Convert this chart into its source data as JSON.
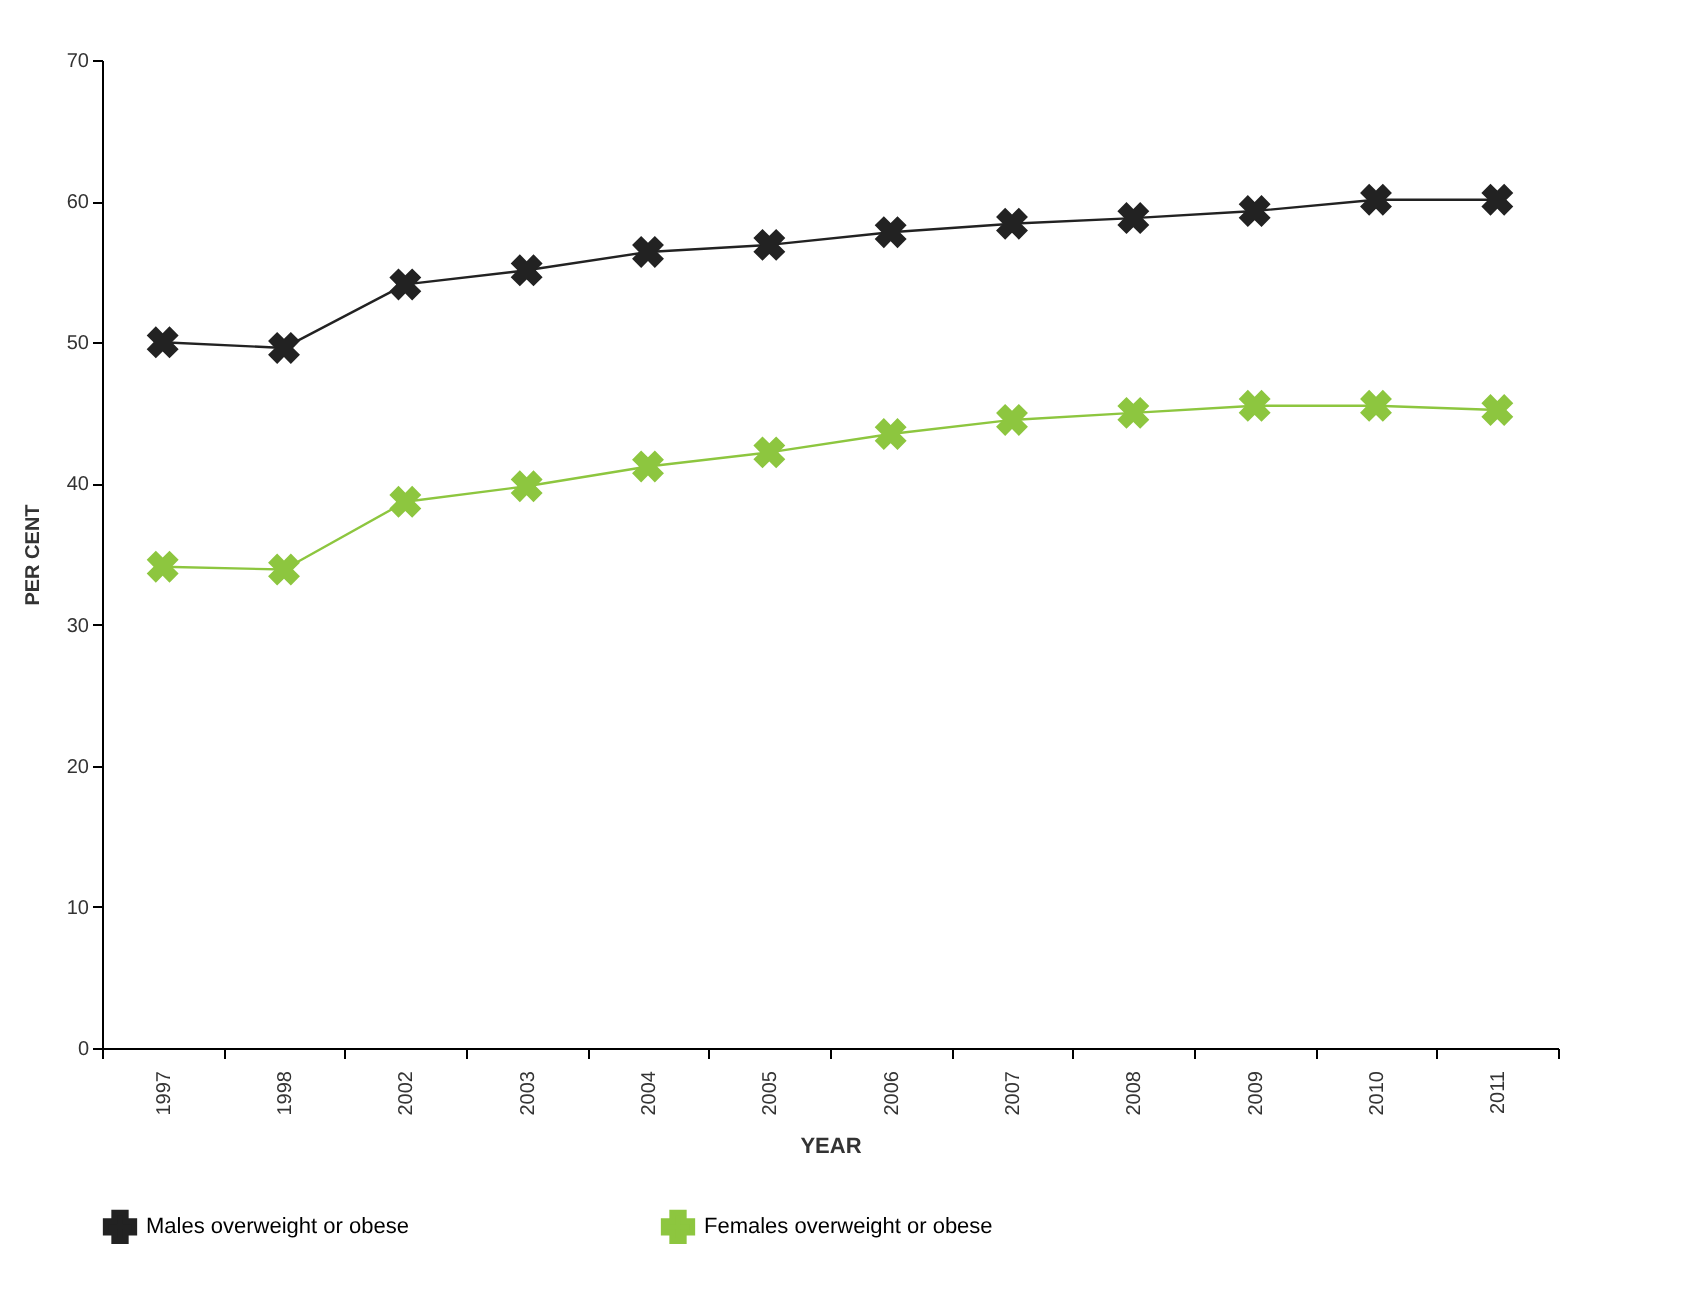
{
  "chart_data": {
    "type": "line",
    "xlabel": "YEAR",
    "ylabel": "PER CENT",
    "categories": [
      "1997",
      "1998",
      "2002",
      "2003",
      "2004",
      "2005",
      "2006",
      "2007",
      "2008",
      "2009",
      "2010",
      "2011"
    ],
    "series": [
      {
        "name": "Males overweight or obese",
        "color": "#222222",
        "values": [
          50.0,
          49.6,
          54.1,
          55.1,
          56.4,
          56.9,
          57.8,
          58.4,
          58.8,
          59.3,
          60.1,
          60.1
        ]
      },
      {
        "name": "Females overweight or obese",
        "color": "#8dc63f",
        "values": [
          34.1,
          33.9,
          38.7,
          39.8,
          41.2,
          42.2,
          43.5,
          44.5,
          45.0,
          45.5,
          45.5,
          45.2
        ]
      }
    ],
    "ylim": [
      0,
      70
    ],
    "yticks": [
      0,
      10,
      20,
      30,
      40,
      50,
      60,
      70
    ],
    "grid": false,
    "legend": "bottom",
    "marker": "cross",
    "line_style": "solid"
  }
}
